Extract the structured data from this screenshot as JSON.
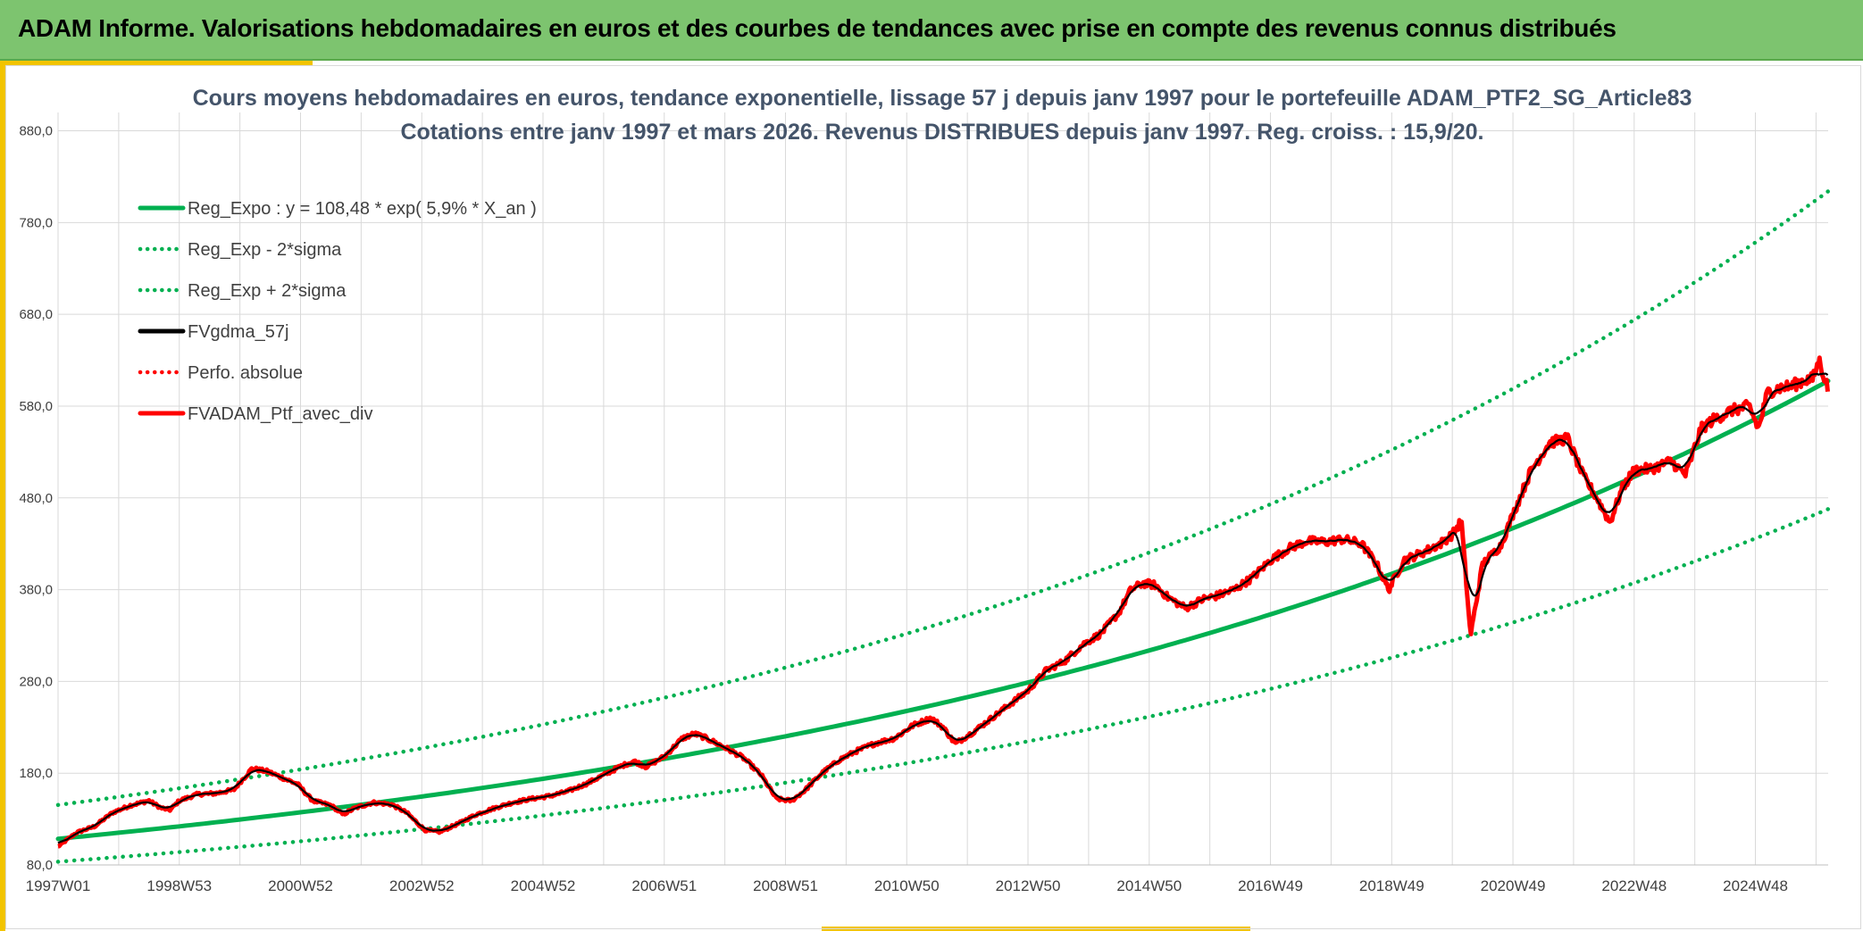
{
  "header": {
    "title": "ADAM Informe. Valorisations hebdomadaires en euros et des courbes de tendances avec prise en compte des revenus connus distribués"
  },
  "colors": {
    "green": "#00b050",
    "black": "#000000",
    "red": "#ff0000",
    "grid": "#d9d9d9"
  },
  "chart_data": {
    "type": "line",
    "title": [
      "Cours moyens hebdomadaires en euros, tendance exponentielle, lissage 57 j depuis janv 1997 pour le portefeuille ADAM_PTF2_SG_Article83",
      "Cotations entre janv 1997 et mars 2026. Revenus DISTRIBUES depuis janv 1997. Reg. croiss. : 15,9/20."
    ],
    "xlabel": "",
    "ylabel": "",
    "xlim": [
      1997.0,
      2026.2
    ],
    "ylim": [
      80,
      900
    ],
    "yticks": [
      80,
      180,
      280,
      380,
      480,
      580,
      680,
      780,
      880
    ],
    "ytick_labels": [
      "80,0",
      "180,0",
      "280,0",
      "380,0",
      "480,0",
      "580,0",
      "680,0",
      "780,0",
      "880,0"
    ],
    "xticks": [
      1997.0,
      1999.0,
      2001.0,
      2003.0,
      2005.0,
      2007.0,
      2009.0,
      2011.0,
      2013.0,
      2015.0,
      2017.0,
      2019.0,
      2021.0,
      2023.0,
      2025.0
    ],
    "xtick_labels": [
      "1997W01",
      "1998W53",
      "2000W52",
      "2002W52",
      "2004W52",
      "2006W51",
      "2008W51",
      "2010W50",
      "2012W50",
      "2014W50",
      "2016W49",
      "2018W49",
      "2020W49",
      "2022W48",
      "2024W48"
    ],
    "legend_position": "top-left",
    "series": [
      {
        "name": "Reg_Expo : y = 108,48 * exp( 5,9% *  X_an )",
        "style": "solid",
        "color": "#00b050",
        "formula": {
          "a": 108.48,
          "r": 0.059,
          "factor": 1.0
        }
      },
      {
        "name": "Reg_Exp - 2*sigma",
        "style": "dotted",
        "color": "#00b050",
        "formula": {
          "a": 108.48,
          "r": 0.059,
          "factor": 0.77
        }
      },
      {
        "name": "Reg_Exp + 2*sigma",
        "style": "dotted",
        "color": "#00b050",
        "formula": {
          "a": 108.48,
          "r": 0.059,
          "factor": 1.34
        }
      },
      {
        "name": "FVgdma_57j",
        "style": "solid",
        "color": "#000000",
        "smoothing_weeks": 8
      },
      {
        "name": "Perfo. absolue",
        "style": "dotted",
        "color": "#ff0000"
      },
      {
        "name": "FVADAM_Ptf_avec_div",
        "style": "solid",
        "color": "#ff0000",
        "x": [
          1997.0,
          1997.3,
          1997.6,
          1997.9,
          1998.2,
          1998.5,
          1998.7,
          1998.85,
          1999.0,
          1999.3,
          1999.6,
          1999.9,
          2000.2,
          2000.45,
          2000.7,
          2000.95,
          2001.2,
          2001.5,
          2001.7,
          2001.9,
          2002.2,
          2002.5,
          2002.75,
          2003.05,
          2003.3,
          2003.6,
          2003.9,
          2004.2,
          2004.5,
          2004.8,
          2005.1,
          2005.4,
          2005.7,
          2006.0,
          2006.3,
          2006.5,
          2006.7,
          2007.0,
          2007.3,
          2007.5,
          2007.7,
          2008.0,
          2008.3,
          2008.6,
          2008.85,
          2009.1,
          2009.3,
          2009.6,
          2009.9,
          2010.2,
          2010.5,
          2010.8,
          2011.1,
          2011.4,
          2011.6,
          2011.8,
          2012.1,
          2012.4,
          2012.7,
          2013.0,
          2013.3,
          2013.6,
          2013.9,
          2014.2,
          2014.5,
          2014.7,
          2014.9,
          2015.1,
          2015.3,
          2015.6,
          2015.9,
          2016.1,
          2016.4,
          2016.7,
          2017.0,
          2017.3,
          2017.6,
          2017.9,
          2018.2,
          2018.5,
          2018.75,
          2018.95,
          2019.2,
          2019.5,
          2019.8,
          2020.0,
          2020.15,
          2020.3,
          2020.5,
          2020.8,
          2021.0,
          2021.3,
          2021.6,
          2021.9,
          2022.15,
          2022.4,
          2022.6,
          2022.8,
          2023.0,
          2023.3,
          2023.6,
          2023.85,
          2024.1,
          2024.3,
          2024.6,
          2024.9,
          2025.05,
          2025.2,
          2025.4,
          2025.6,
          2025.8,
          2025.95,
          2026.05,
          2026.2
        ],
        "values": [
          100,
          115,
          122,
          137,
          145,
          150,
          142,
          140,
          150,
          157,
          158,
          162,
          185,
          182,
          175,
          168,
          150,
          145,
          135,
          142,
          148,
          146,
          137,
          118,
          116,
          125,
          135,
          142,
          148,
          152,
          155,
          160,
          168,
          178,
          188,
          193,
          187,
          198,
          218,
          223,
          218,
          208,
          197,
          178,
          152,
          150,
          160,
          180,
          195,
          205,
          213,
          218,
          232,
          240,
          230,
          212,
          225,
          240,
          255,
          270,
          292,
          302,
          320,
          332,
          355,
          380,
          387,
          385,
          372,
          360,
          370,
          373,
          380,
          393,
          412,
          425,
          433,
          432,
          435,
          430,
          408,
          380,
          412,
          420,
          430,
          440,
          455,
          330,
          408,
          428,
          462,
          510,
          540,
          545,
          505,
          478,
          453,
          490,
          510,
          512,
          520,
          505,
          555,
          565,
          575,
          580,
          555,
          595,
          600,
          602,
          608,
          610,
          630,
          598
        ]
      }
    ]
  }
}
